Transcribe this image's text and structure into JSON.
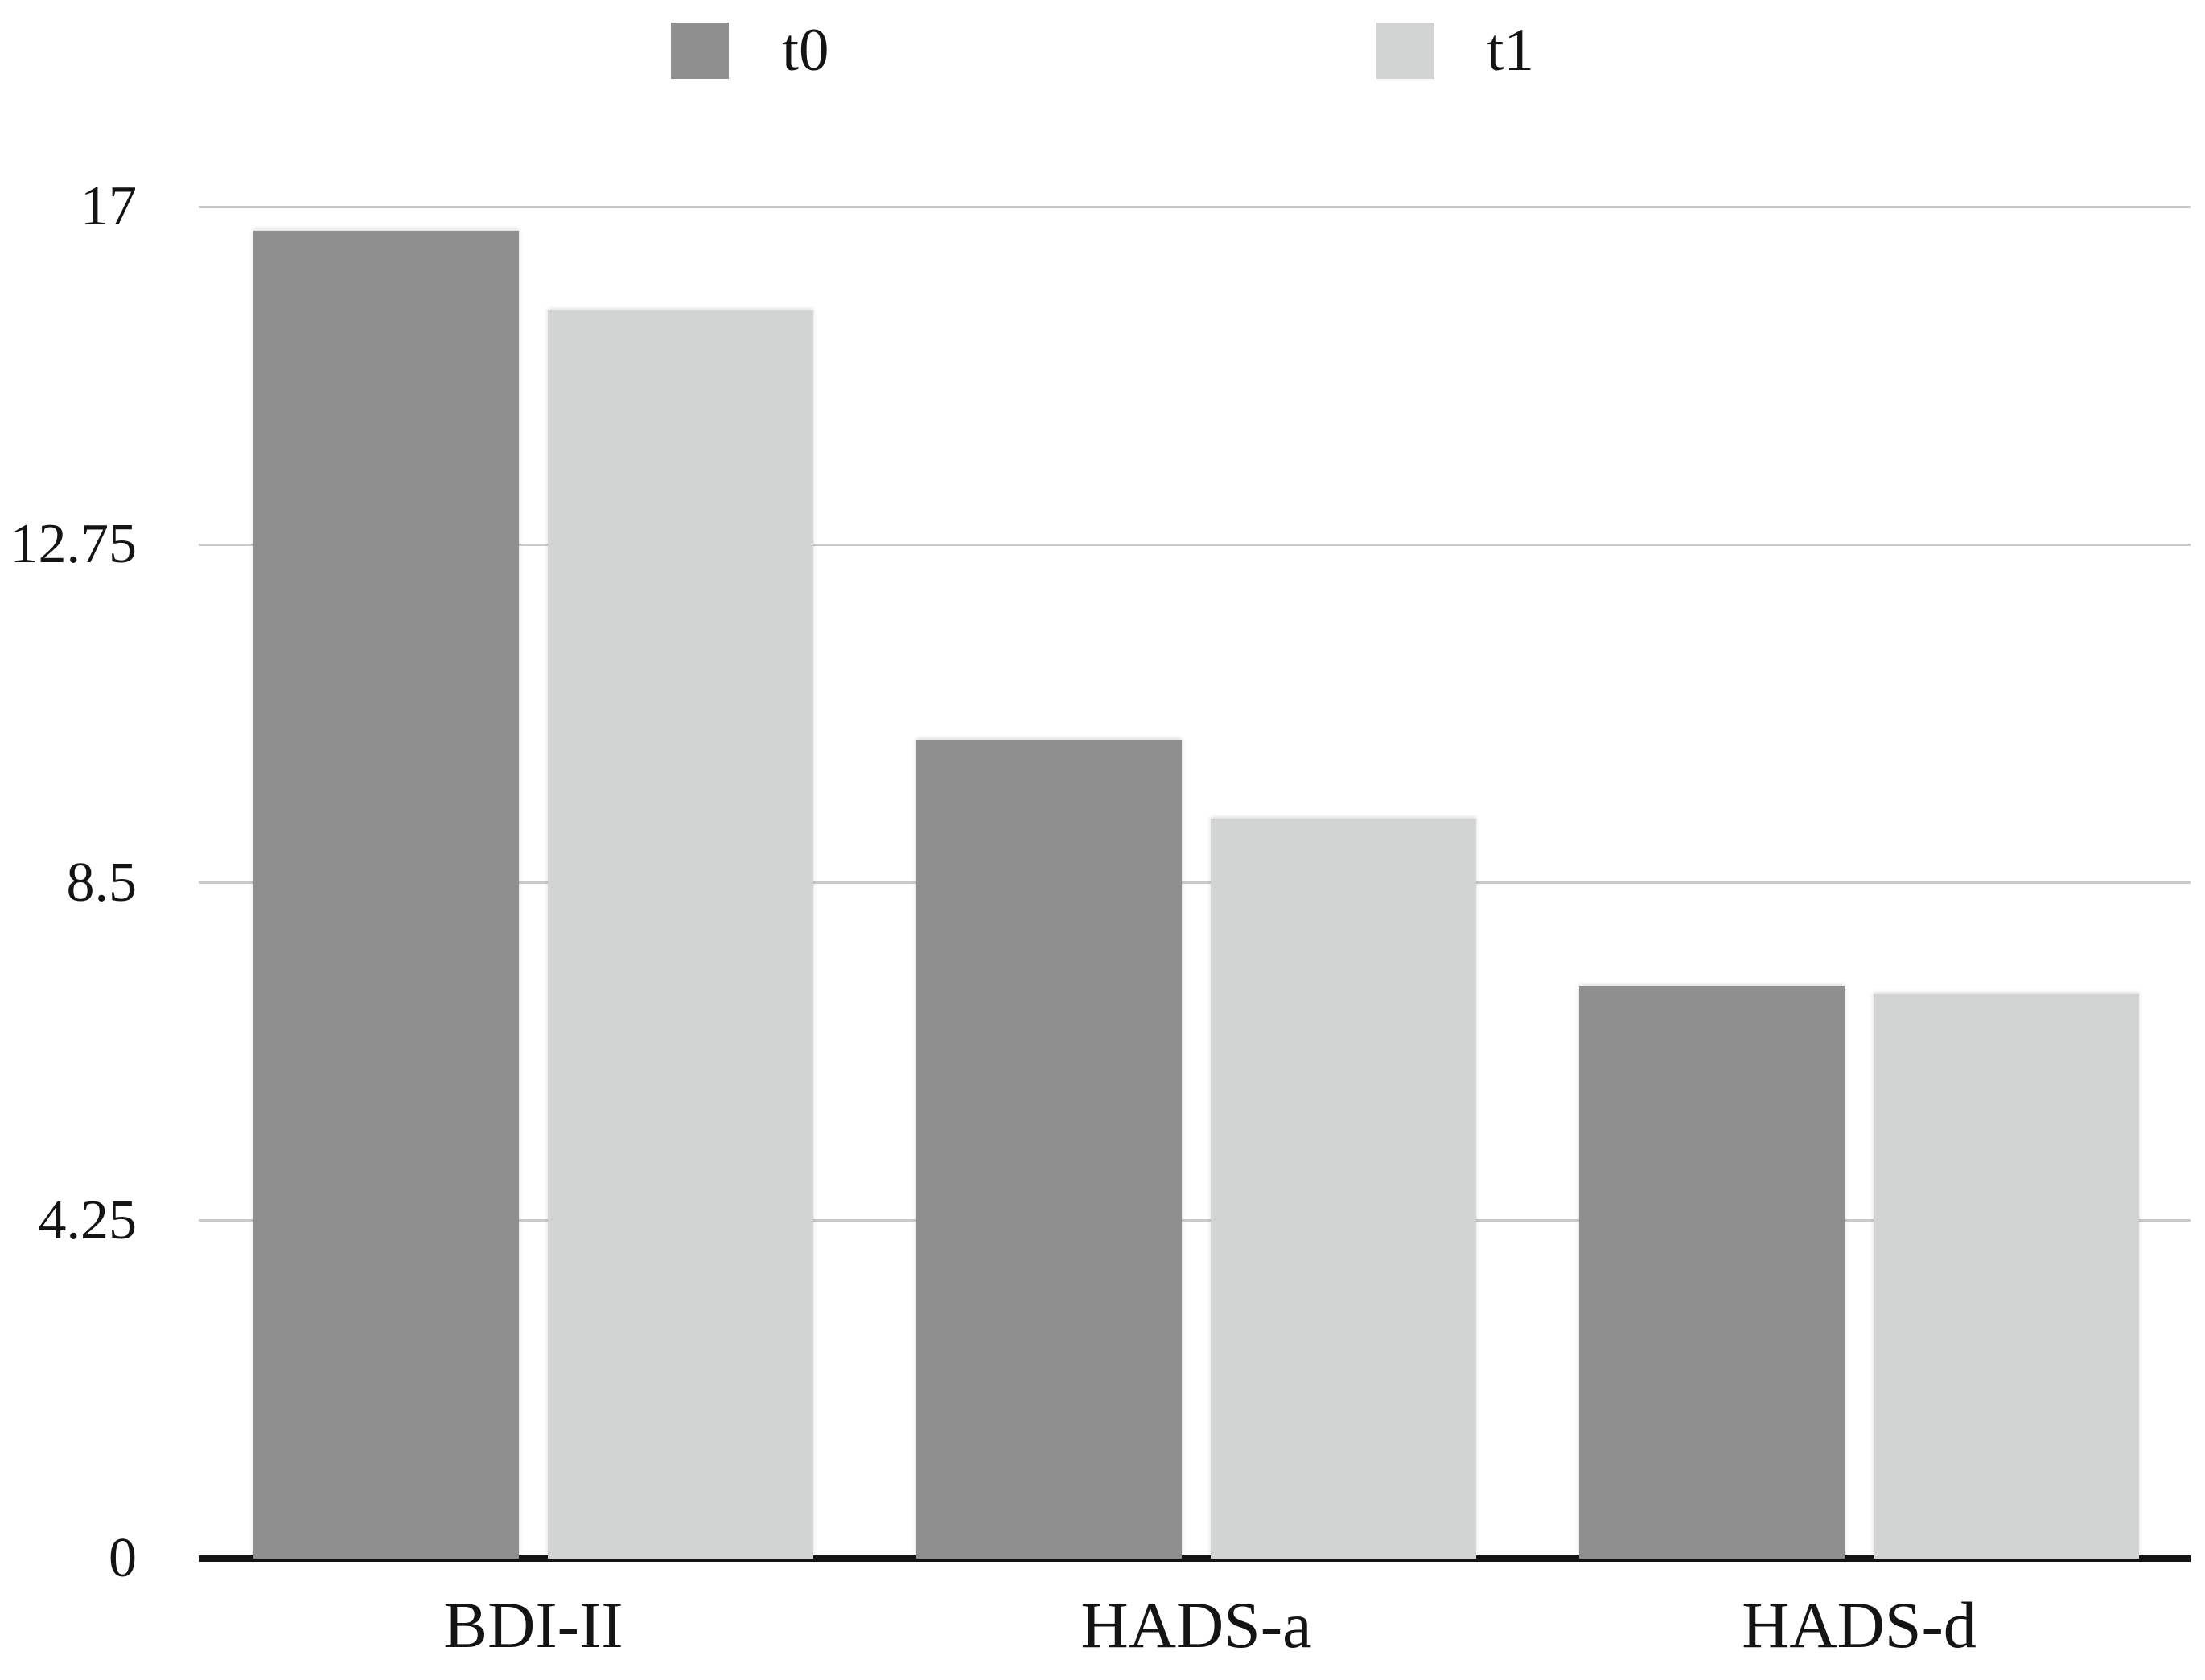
{
  "chart_data": {
    "type": "bar",
    "title": "",
    "xlabel": "",
    "ylabel": "",
    "categories": [
      "BDI-II",
      "HADS-a",
      "HADS-d"
    ],
    "series": [
      {
        "name": "t0",
        "color": "#8f8f8f",
        "values": [
          16.7,
          10.3,
          7.2
        ]
      },
      {
        "name": "t1",
        "color": "#d2d4d3",
        "values": [
          15.7,
          9.3,
          7.1
        ]
      }
    ],
    "ylim": [
      0,
      17
    ],
    "yticks": [
      {
        "value": 17,
        "label": "17"
      },
      {
        "value": 12.75,
        "label": "12.75"
      },
      {
        "value": 8.5,
        "label": "8.5"
      },
      {
        "value": 4.25,
        "label": "4.25"
      },
      {
        "value": 0,
        "label": "0"
      }
    ],
    "grid": true,
    "legend_position": "top-center",
    "colors": {
      "gridline": "#c9c9c9",
      "axis": "#141414",
      "text": "#141414",
      "background": "#ffffff"
    }
  }
}
